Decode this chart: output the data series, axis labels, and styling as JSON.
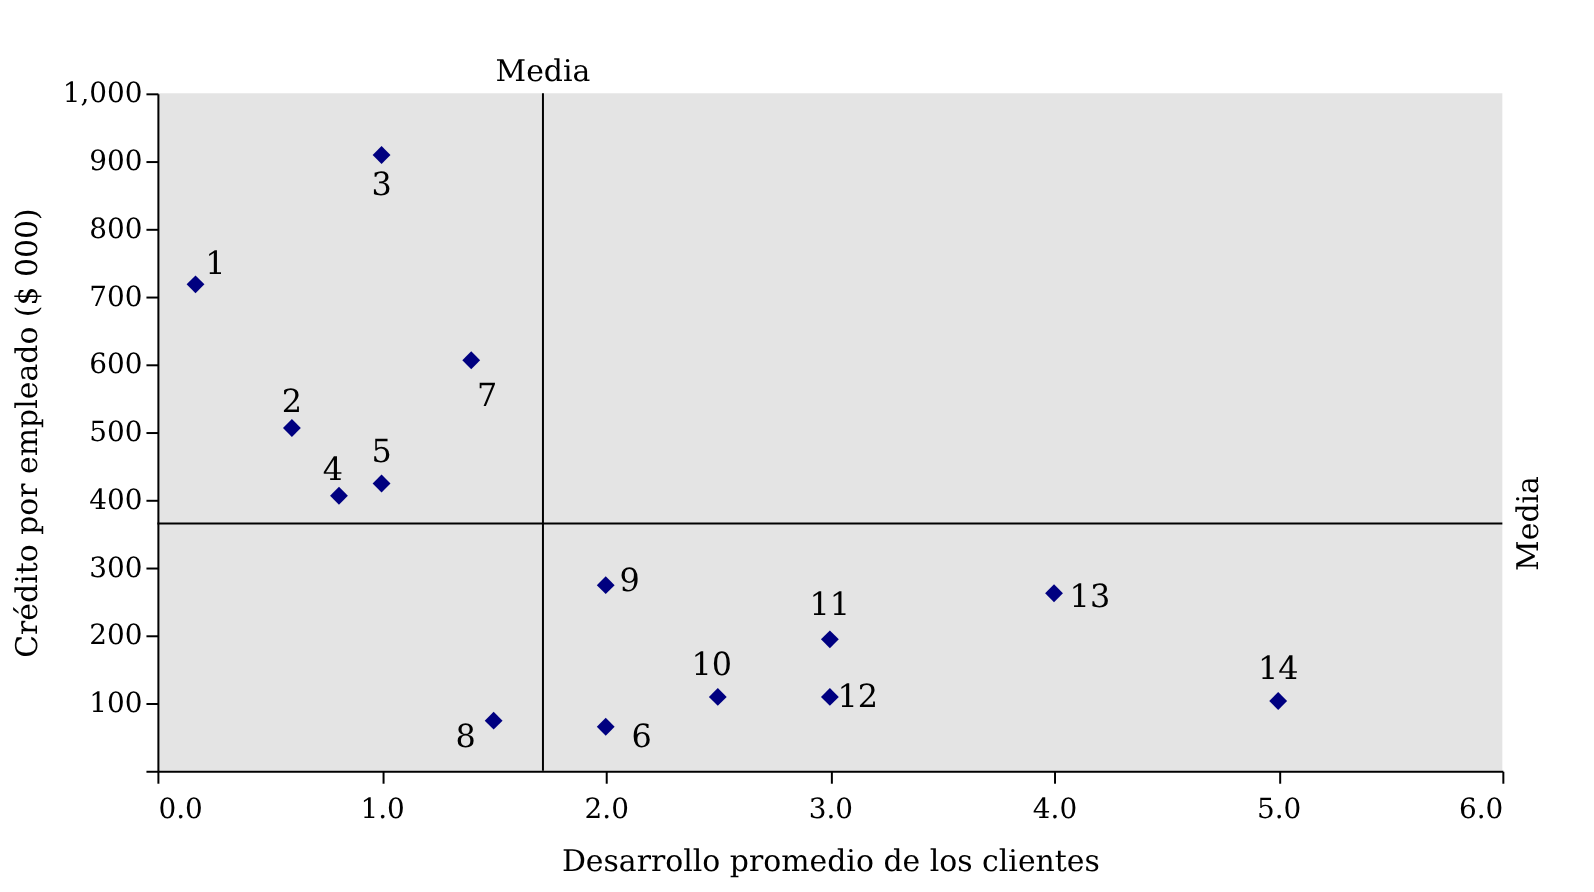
{
  "chart_data": {
    "type": "scatter",
    "xlabel": "Desarrollo promedio de los clientes",
    "ylabel": "Crédito por empleado ($ 000)",
    "x": [
      0.17,
      0.6,
      1.0,
      0.81,
      1.0,
      2.0,
      1.4,
      1.5,
      2.0,
      2.5,
      3.0,
      3.0,
      4.0,
      5.0
    ],
    "series": [
      {
        "color": "#000080",
        "values": [
          718,
          506,
          909,
          406,
          424,
          65,
          606,
          74,
          274,
          109,
          194,
          109,
          262,
          103
        ]
      }
    ],
    "marker": "diamond",
    "xlim": [
      0,
      6
    ],
    "ylim": [
      0,
      1000
    ],
    "xticks": [
      {
        "value": 0,
        "label": "0.0"
      },
      {
        "value": 1,
        "label": "1.0"
      },
      {
        "value": 2,
        "label": "2.0"
      },
      {
        "value": 3,
        "label": "3.0"
      },
      {
        "value": 4,
        "label": "4.0"
      },
      {
        "value": 5,
        "label": "5.0"
      },
      {
        "value": 6,
        "label": "6.0"
      }
    ],
    "yticks": [
      {
        "value": 0,
        "label": null
      },
      100,
      200,
      300,
      400,
      500,
      600,
      700,
      800,
      900,
      {
        "value": 1000,
        "label": "1,000"
      }
    ],
    "ref_lines": [
      {
        "axis": "x",
        "value": 1.72,
        "label": "Media",
        "color": "#000000"
      },
      {
        "axis": "y",
        "value": 365,
        "label": "Media",
        "color": "#000000"
      }
    ],
    "annotations": [
      {
        "text": "1",
        "x": 0.17,
        "y": 718
      },
      {
        "text": "2",
        "x": 0.6,
        "y": 506
      },
      {
        "text": "3",
        "x": 1.0,
        "y": 909
      },
      {
        "text": "4",
        "x": 0.81,
        "y": 406
      },
      {
        "text": "5",
        "x": 1.0,
        "y": 424
      },
      {
        "text": "6",
        "x": 2.0,
        "y": 65
      },
      {
        "text": "7",
        "x": 1.4,
        "y": 606
      },
      {
        "text": "8",
        "x": 1.5,
        "y": 74
      },
      {
        "text": "9",
        "x": 2.0,
        "y": 274
      },
      {
        "text": "10",
        "x": 2.5,
        "y": 109
      },
      {
        "text": "11",
        "x": 3.0,
        "y": 194
      },
      {
        "text": "12",
        "x": 3.0,
        "y": 109
      },
      {
        "text": "13",
        "x": 4.0,
        "y": 262
      },
      {
        "text": "14",
        "x": 5.0,
        "y": 103
      }
    ],
    "tick_labels": true
  }
}
